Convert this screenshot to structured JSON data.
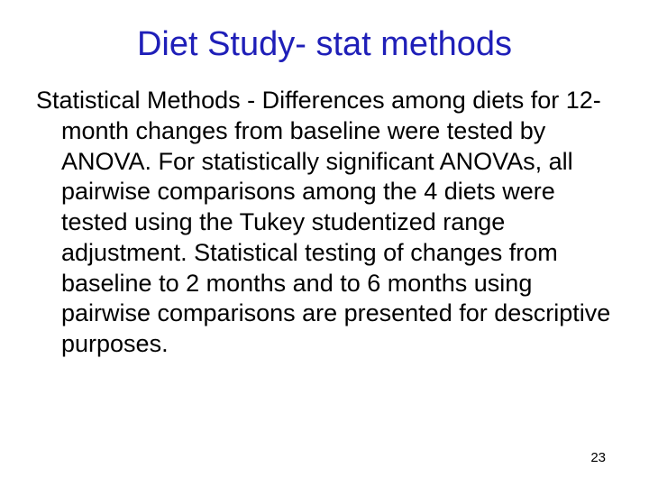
{
  "slide": {
    "title": "Diet Study- stat methods",
    "body": "Statistical Methods - Differences among diets for 12-month changes from baseline were tested by ANOVA. For statistically significant ANOVAs, all pairwise comparisons among the 4 diets were tested using the Tukey studentized range adjustment.  Statistical testing of changes from baseline to 2 months and to 6 months using pairwise comparisons are presented for descriptive purposes.",
    "page_number": "23"
  },
  "colors": {
    "title_color": "#1f1fb8",
    "body_color": "#000000",
    "background_color": "#ffffff"
  },
  "typography": {
    "title_fontsize": 38,
    "body_fontsize": 27,
    "page_number_fontsize": 15,
    "font_family": "Arial"
  }
}
